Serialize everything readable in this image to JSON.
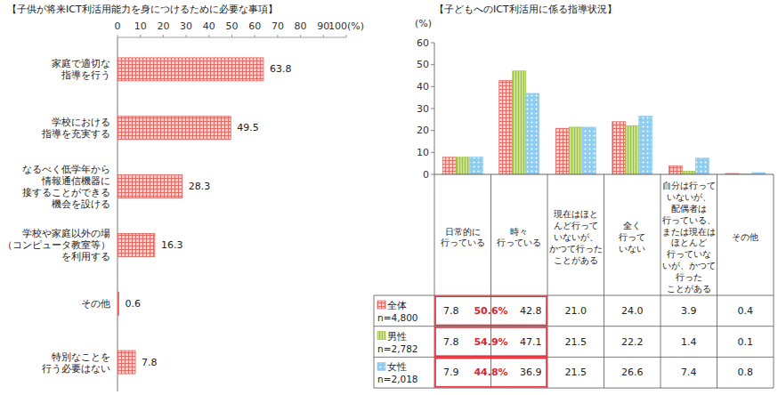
{
  "chart_data": [
    {
      "type": "bar",
      "title": "【子供が将来ICT利活用能力を身につけるために必要な事項】",
      "orientation": "horizontal",
      "categories": [
        "家庭で適切な\n指導を行う",
        "学校における\n指導を充実する",
        "なるべく低学年から\n情報通信機器に\n接することができる\n機会を設ける",
        "学校や家庭以外の場\n（コンピュータ教室等）\nを利用する",
        "その他",
        "特別なことを\n行う必要はない"
      ],
      "values": [
        63.8,
        49.5,
        28.3,
        16.3,
        0.6,
        7.8
      ],
      "color": "#e2625c",
      "xlim": [
        0,
        100
      ],
      "xticks": [
        0,
        10,
        20,
        30,
        40,
        50,
        60,
        70,
        80,
        90,
        {
          "value": 100,
          "label": "100(%)"
        }
      ],
      "data_labels": true,
      "grid": false
    },
    {
      "type": "bar",
      "title": "【子どもへのICT利活用に係る指導状況】",
      "ylabel": "(%)",
      "categories": [
        "日常的に\n行っている",
        "時々\n行っている",
        "現在はほと\nんど行って\nいないが、\nかつて行った\nことがある",
        "全く\n行って\nいない",
        "自分は行って\nいないが、\n配偶者は\n行っている、\nまたは現在は\nほとんど\n行っていな\nいが、かつて\n行った\nことがある",
        "その他"
      ],
      "series": [
        {
          "name": "全体\nn=4,800",
          "color": "#e2625c",
          "values": [
            7.8,
            42.8,
            21.0,
            24.0,
            3.9,
            0.4
          ],
          "value_labels": [
            "7.8",
            "42.8",
            "21.0",
            "24.0",
            "3.9",
            "0.4"
          ]
        },
        {
          "name": "男性\nn=2,782",
          "color": "#9cc43a",
          "values": [
            7.8,
            47.1,
            21.5,
            22.2,
            1.4,
            0.1
          ],
          "value_labels": [
            "7.8",
            "47.1",
            "21.5",
            "22.2",
            "1.4",
            "0.1"
          ]
        },
        {
          "name": "女性\nn=2,018",
          "color": "#8fcdf0",
          "values": [
            7.9,
            36.9,
            21.5,
            26.6,
            7.4,
            0.8
          ],
          "value_labels": [
            "7.9",
            "36.9",
            "21.5",
            "26.6",
            "7.4",
            "0.8"
          ]
        }
      ],
      "annotations": [
        "50.6%",
        "54.9%",
        "44.8%"
      ],
      "ylim": [
        0,
        60
      ],
      "yticks": [
        0,
        10,
        20,
        30,
        40,
        50,
        60
      ],
      "grid": false
    }
  ]
}
